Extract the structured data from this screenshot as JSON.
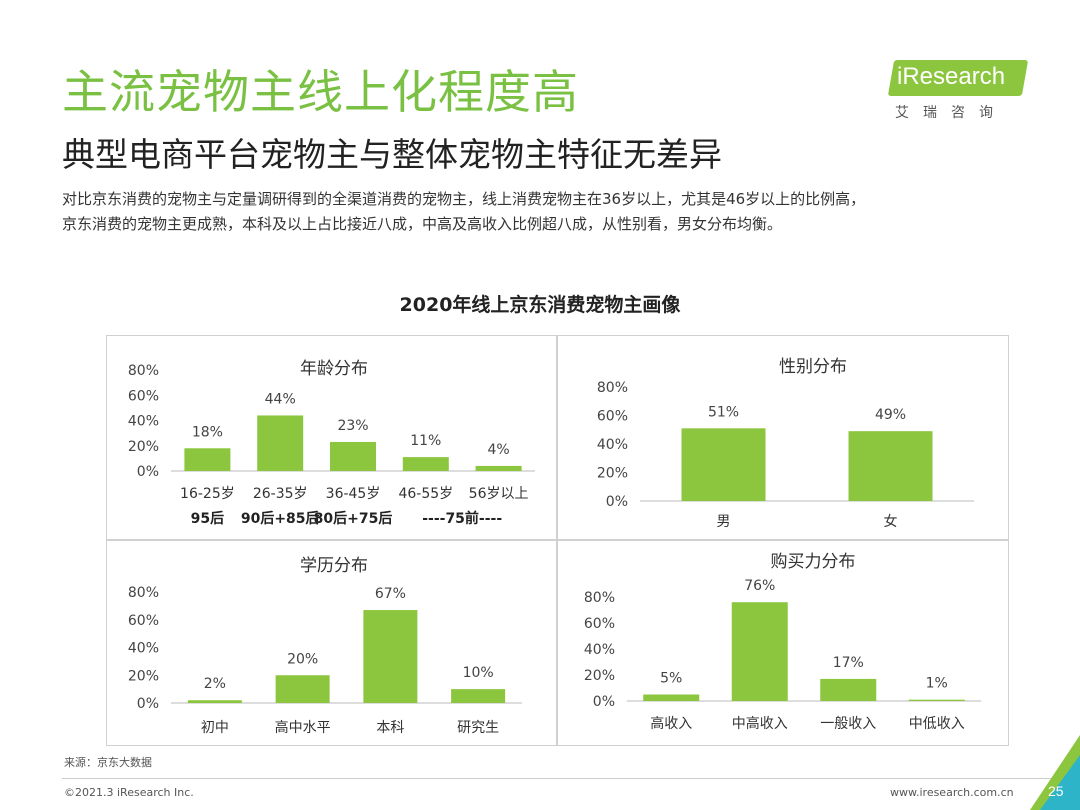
{
  "header": {
    "title": "主流宠物主线上化程度高",
    "subtitle": "典型电商平台宠物主与整体宠物主特征无差异",
    "desc_line1": "对比京东消费的宠物主与定量调研得到的全渠道消费的宠物主，线上消费宠物主在36岁以上，尤其是46岁以上的比例高，",
    "desc_line2": "京东消费的宠物主更成熟，本科及以上占比接近八成，中高及高收入比例超八成，从性别看，男女分布均衡。"
  },
  "logo": {
    "text": "iResearch",
    "sub": "艾瑞咨询"
  },
  "chart_title": "2020年线上京东消费宠物主画像",
  "colors": {
    "bar": "#8cc63f",
    "title": "#7ac143"
  },
  "chart_data": [
    {
      "id": "age",
      "type": "bar",
      "title": "年龄分布",
      "categories": [
        "16-25岁",
        "26-35岁",
        "36-45岁",
        "46-55岁",
        "56岁以上"
      ],
      "values": [
        18,
        44,
        23,
        11,
        4
      ],
      "labels": [
        "18%",
        "44%",
        "23%",
        "11%",
        "4%"
      ],
      "generation_labels": [
        "95后",
        "90后+85后",
        "80后+75后",
        "----75前----"
      ],
      "yticks": [
        "0%",
        "20%",
        "40%",
        "60%",
        "80%"
      ],
      "ylim": [
        0,
        80
      ]
    },
    {
      "id": "gender",
      "type": "bar",
      "title": "性别分布",
      "categories": [
        "男",
        "女"
      ],
      "values": [
        51,
        49
      ],
      "labels": [
        "51%",
        "49%"
      ],
      "yticks": [
        "0%",
        "20%",
        "40%",
        "60%",
        "80%"
      ],
      "ylim": [
        0,
        80
      ]
    },
    {
      "id": "edu",
      "type": "bar",
      "title": "学历分布",
      "categories": [
        "初中",
        "高中水平",
        "本科",
        "研究生"
      ],
      "values": [
        2,
        20,
        67,
        10
      ],
      "labels": [
        "2%",
        "20%",
        "67%",
        "10%"
      ],
      "yticks": [
        "0%",
        "20%",
        "40%",
        "60%",
        "80%"
      ],
      "ylim": [
        0,
        80
      ]
    },
    {
      "id": "buy",
      "type": "bar",
      "title": "购买力分布",
      "categories": [
        "高收入",
        "中高收入",
        "一般收入",
        "中低收入"
      ],
      "values": [
        5,
        76,
        17,
        1
      ],
      "labels": [
        "5%",
        "76%",
        "17%",
        "1%"
      ],
      "yticks": [
        "0%",
        "20%",
        "40%",
        "60%",
        "80%"
      ],
      "ylim": [
        0,
        80
      ]
    }
  ],
  "footer": {
    "source": "来源：京东大数据",
    "copyright": "©2021.3 iResearch Inc.",
    "website": "www.iresearch.com.cn",
    "page": "25"
  }
}
